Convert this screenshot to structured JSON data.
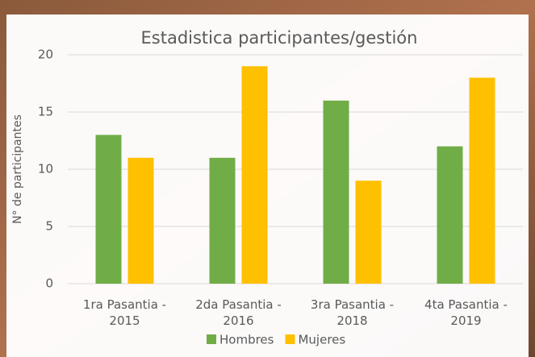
{
  "chart_data": {
    "type": "bar",
    "title": "Estadistica participantes/gestión",
    "y_label": "N° de participantes",
    "categories": [
      "1ra Pasantia - 2015",
      "2da Pasantia - 2016",
      "3ra Pasantia - 2018",
      "4ta Pasantia - 2019"
    ],
    "series": [
      {
        "name": "Hombres",
        "color": "#70ad47",
        "values": [
          13,
          11,
          16,
          12
        ]
      },
      {
        "name": "Mujeres",
        "color": "#ffc000",
        "values": [
          11,
          19,
          9,
          18
        ]
      }
    ],
    "ylim": [
      0,
      20
    ],
    "yticks": [
      0,
      5,
      10,
      15,
      20
    ],
    "grid": true,
    "legend": "bottom"
  }
}
